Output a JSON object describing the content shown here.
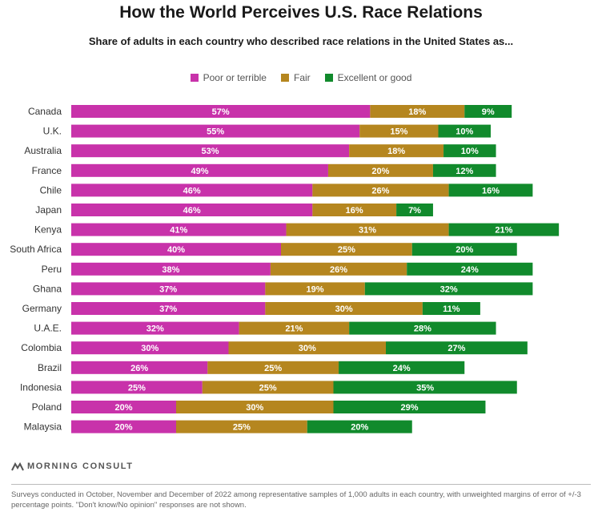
{
  "header": {
    "title": "How the World Perceives U.S. Race Relations",
    "subtitle": "Share of adults in each country who described race relations in the United States as..."
  },
  "colors": {
    "poor": "#c832aa",
    "fair": "#b5861f",
    "good": "#118a2c"
  },
  "chart_data": {
    "type": "bar",
    "orientation": "horizontal",
    "stacked": true,
    "title": "How the World Perceives U.S. Race Relations",
    "subtitle": "Share of adults in each country who described race relations in the United States as...",
    "legend_position": "top-center",
    "categories": [
      "Canada",
      "U.K.",
      "Australia",
      "France",
      "Chile",
      "Japan",
      "Kenya",
      "South Africa",
      "Peru",
      "Ghana",
      "Germany",
      "U.A.E.",
      "Colombia",
      "Brazil",
      "Indonesia",
      "Poland",
      "Malaysia"
    ],
    "series": [
      {
        "name": "Poor or terrible",
        "color": "#c832aa",
        "values": [
          57,
          55,
          53,
          49,
          46,
          46,
          41,
          40,
          38,
          37,
          37,
          32,
          30,
          26,
          25,
          20,
          20
        ]
      },
      {
        "name": "Fair",
        "color": "#b5861f",
        "values": [
          18,
          15,
          18,
          20,
          26,
          16,
          31,
          25,
          26,
          19,
          30,
          21,
          30,
          25,
          25,
          30,
          25
        ]
      },
      {
        "name": "Excellent or good",
        "color": "#118a2c",
        "values": [
          9,
          10,
          10,
          12,
          16,
          7,
          21,
          20,
          24,
          32,
          11,
          28,
          27,
          24,
          35,
          29,
          20
        ]
      }
    ],
    "value_suffix": "%"
  },
  "brand": {
    "name": "MORNING CONSULT"
  },
  "footnote": "Surveys conducted in October, November and December of 2022 among representative samples of 1,000 adults in each country, with unweighted margins of error of +/-3 percentage points. \"Don't know/No opinion\" responses are not shown."
}
